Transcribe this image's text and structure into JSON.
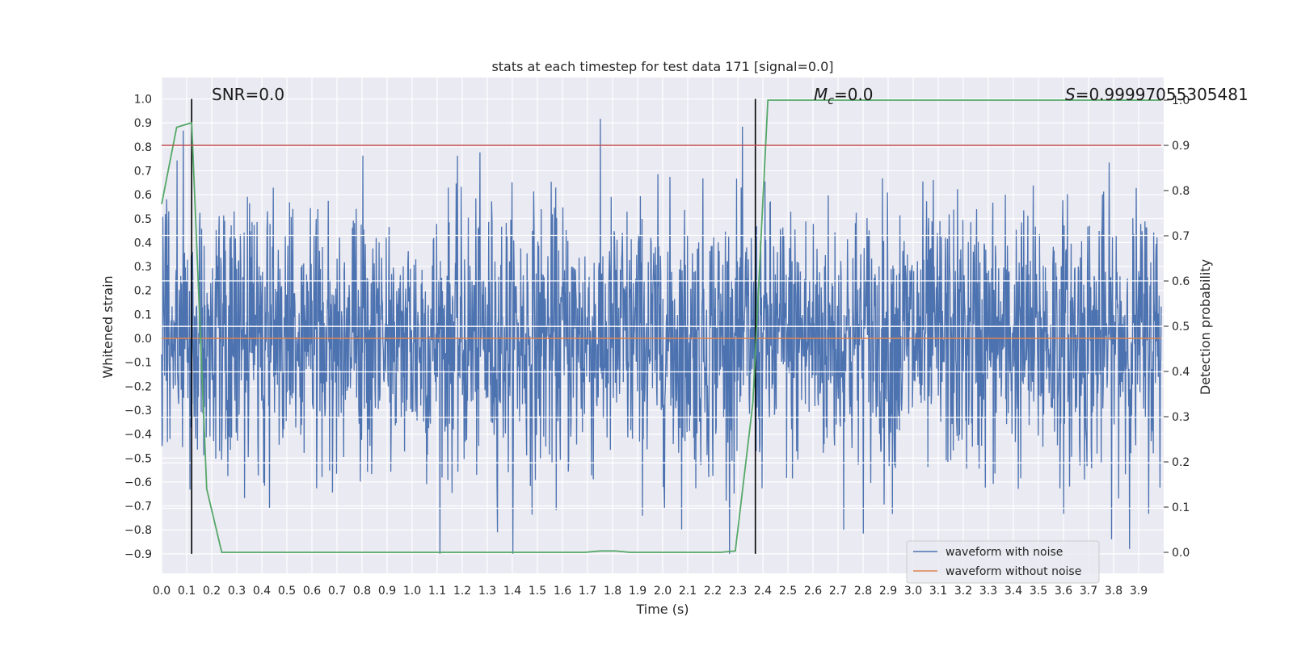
{
  "chart_data": {
    "type": "line",
    "title": "stats at each timestep for test data 171 [signal=0.0]",
    "xlabel": "Time (s)",
    "ylabel": "Whitened strain",
    "y2label": "Detection probability",
    "xlim": [
      0.0,
      4.0
    ],
    "ylim": [
      -0.99,
      1.09
    ],
    "y2lim": [
      -0.05,
      1.05
    ],
    "xticks": [
      "0.0",
      "0.1",
      "0.2",
      "0.3",
      "0.4",
      "0.5",
      "0.6",
      "0.7",
      "0.8",
      "0.9",
      "1.0",
      "1.1",
      "1.2",
      "1.3",
      "1.4",
      "1.5",
      "1.6",
      "1.7",
      "1.8",
      "1.9",
      "2.0",
      "2.1",
      "2.2",
      "2.3",
      "2.4",
      "2.5",
      "2.6",
      "2.7",
      "2.8",
      "2.9",
      "3.0",
      "3.1",
      "3.2",
      "3.3",
      "3.4",
      "3.5",
      "3.6",
      "3.7",
      "3.8",
      "3.9"
    ],
    "yticks": [
      "1.0",
      "0.9",
      "0.8",
      "0.7",
      "0.6",
      "0.5",
      "0.4",
      "0.3",
      "0.2",
      "0.1",
      "0.0",
      "−0.1",
      "−0.2",
      "−0.3",
      "−0.4",
      "−0.5",
      "−0.6",
      "−0.7",
      "−0.8",
      "−0.9"
    ],
    "y2ticks": [
      "1.0",
      "0.9",
      "0.8",
      "0.7",
      "0.6",
      "0.5",
      "0.4",
      "0.3",
      "0.2",
      "0.1",
      "0.0"
    ],
    "grid": true,
    "legend_position": "lower right",
    "legend": [
      "waveform with noise",
      "waveform without noise"
    ],
    "annotations": {
      "snr": "SNR=0.0",
      "mc_symbol": "M",
      "mc_sub": "c",
      "mc_value": "=0.0",
      "s_symbol": "S",
      "s_value": "=0.99997055305481"
    },
    "series": [
      {
        "name": "waveform with noise",
        "color": "#4c72b0",
        "noise_std": 0.28,
        "sample_count": 2400,
        "y_range": [
          -0.9,
          1.0
        ]
      },
      {
        "name": "waveform without noise",
        "color": "#dd8452",
        "x": [
          0.0,
          3.99
        ],
        "y": [
          0.0,
          0.0
        ]
      },
      {
        "color": "#55a868",
        "axis": "right",
        "x": [
          0.0,
          0.06,
          0.12,
          0.18,
          0.24,
          0.31,
          0.37,
          0.43,
          0.49,
          0.55,
          0.61,
          0.67,
          0.73,
          0.79,
          0.85,
          0.91,
          0.97,
          1.03,
          1.09,
          1.15,
          1.21,
          1.27,
          1.33,
          1.39,
          1.45,
          1.51,
          1.57,
          1.63,
          1.69,
          1.75,
          1.81,
          1.87,
          1.93,
          1.99,
          2.05,
          2.11,
          2.17,
          2.23,
          2.29,
          2.36,
          2.42,
          2.48,
          2.54,
          3.99
        ],
        "y": [
          0.77,
          0.94,
          0.95,
          0.14,
          0.0,
          0.0,
          0.0,
          0.0,
          0.0,
          0.0,
          0.0,
          0.0,
          0.0,
          0.0,
          0.0,
          0.0,
          0.0,
          0.0,
          0.0,
          0.0,
          0.0,
          0.0,
          0.0,
          0.0,
          0.0,
          0.0,
          0.0,
          0.0,
          0.0,
          0.003,
          0.003,
          0.0,
          0.0,
          0.0,
          0.0,
          0.0,
          0.0,
          0.0,
          0.003,
          0.33,
          1.0,
          1.0,
          1.0,
          1.0
        ]
      },
      {
        "color": "#c44e52",
        "axis": "right",
        "x": [
          0.0,
          3.99
        ],
        "y": [
          0.9,
          0.9
        ]
      }
    ],
    "vlines": {
      "color": "#000000",
      "x": [
        0.12,
        2.37
      ],
      "y_range": [
        -0.9,
        1.0
      ]
    },
    "hlines": {
      "color": "#ffffff",
      "y": [
        0.43,
        0.24,
        0.05,
        -0.14,
        -0.33,
        -0.52,
        -0.71
      ]
    }
  }
}
